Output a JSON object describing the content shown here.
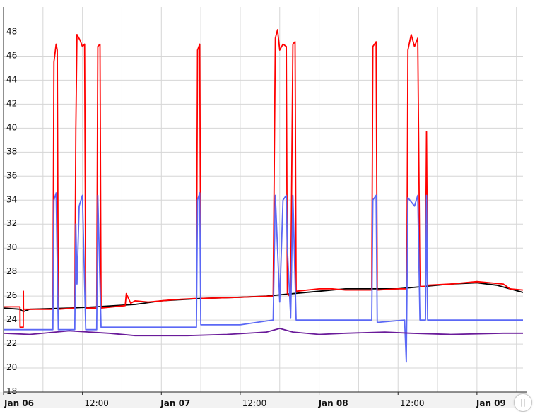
{
  "chart_data": {
    "type": "line",
    "title": "",
    "xlabel": "",
    "ylabel": "",
    "ylim": [
      18,
      49.5
    ],
    "xlim": [
      "2024-01-06T00:00",
      "2024-01-09T07:00"
    ],
    "y_ticks": [
      "18",
      "20",
      "22",
      "24",
      "26",
      "28",
      "30",
      "32",
      "34",
      "36",
      "38",
      "40",
      "42",
      "44",
      "46",
      "48"
    ],
    "x_ticks": [
      {
        "label": "Jan 06",
        "at": "2024-01-06T00:00",
        "major": true
      },
      {
        "label": "12:00",
        "at": "2024-01-06T12:00",
        "major": false
      },
      {
        "label": "Jan 07",
        "at": "2024-01-07T00:00",
        "major": true
      },
      {
        "label": "12:00",
        "at": "2024-01-07T12:00",
        "major": false
      },
      {
        "label": "Jan 08",
        "at": "2024-01-08T00:00",
        "major": true
      },
      {
        "label": "12:00",
        "at": "2024-01-08T12:00",
        "major": false
      },
      {
        "label": "Jan 09",
        "at": "2024-01-09T00:00",
        "major": true
      }
    ],
    "grid": true,
    "legend": "none",
    "series": [
      {
        "color": "#000000",
        "points": [
          [
            "2024-01-06T00:00",
            25.0
          ],
          [
            "2024-01-06T02:30",
            24.9
          ],
          [
            "2024-01-06T03:00",
            24.7
          ],
          [
            "2024-01-06T04:00",
            24.9
          ],
          [
            "2024-01-06T10:00",
            25.0
          ],
          [
            "2024-01-06T14:00",
            25.1
          ],
          [
            "2024-01-06T20:00",
            25.3
          ],
          [
            "2024-01-07T00:00",
            25.6
          ],
          [
            "2024-01-07T06:00",
            25.8
          ],
          [
            "2024-01-07T12:00",
            25.9
          ],
          [
            "2024-01-07T16:00",
            26.0
          ],
          [
            "2024-01-07T20:00",
            26.2
          ],
          [
            "2024-01-08T00:00",
            26.4
          ],
          [
            "2024-01-08T04:00",
            26.6
          ],
          [
            "2024-01-08T08:00",
            26.6
          ],
          [
            "2024-01-08T12:00",
            26.6
          ],
          [
            "2024-01-08T16:00",
            26.8
          ],
          [
            "2024-01-08T20:00",
            27.0
          ],
          [
            "2024-01-09T00:00",
            27.1
          ],
          [
            "2024-01-09T03:00",
            26.9
          ],
          [
            "2024-01-09T05:00",
            26.6
          ],
          [
            "2024-01-09T07:00",
            26.3
          ]
        ]
      },
      {
        "color": "#ff0000",
        "points": [
          [
            "2024-01-06T00:00",
            25.1
          ],
          [
            "2024-01-06T02:30",
            25.1
          ],
          [
            "2024-01-06T02:31",
            23.4
          ],
          [
            "2024-01-06T03:00",
            23.4
          ],
          [
            "2024-01-06T03:01",
            26.4
          ],
          [
            "2024-01-06T03:02",
            24.9
          ],
          [
            "2024-01-06T07:30",
            24.9
          ],
          [
            "2024-01-06T07:40",
            45.5
          ],
          [
            "2024-01-06T08:00",
            47.0
          ],
          [
            "2024-01-06T08:10",
            46.5
          ],
          [
            "2024-01-06T08:20",
            24.9
          ],
          [
            "2024-01-06T10:50",
            25.0
          ],
          [
            "2024-01-06T11:00",
            40.0
          ],
          [
            "2024-01-06T11:10",
            47.8
          ],
          [
            "2024-01-06T11:40",
            47.3
          ],
          [
            "2024-01-06T12:00",
            46.8
          ],
          [
            "2024-01-06T12:20",
            47.0
          ],
          [
            "2024-01-06T12:30",
            25.0
          ],
          [
            "2024-01-06T14:10",
            25.0
          ],
          [
            "2024-01-06T14:20",
            46.8
          ],
          [
            "2024-01-06T14:40",
            47.0
          ],
          [
            "2024-01-06T14:50",
            25.0
          ],
          [
            "2024-01-06T18:30",
            25.2
          ],
          [
            "2024-01-06T18:40",
            26.2
          ],
          [
            "2024-01-06T19:20",
            25.4
          ],
          [
            "2024-01-06T20:00",
            25.6
          ],
          [
            "2024-01-06T22:00",
            25.5
          ],
          [
            "2024-01-07T02:00",
            25.7
          ],
          [
            "2024-01-07T05:20",
            25.8
          ],
          [
            "2024-01-07T05:30",
            46.5
          ],
          [
            "2024-01-07T05:50",
            47.0
          ],
          [
            "2024-01-07T06:00",
            25.8
          ],
          [
            "2024-01-07T12:00",
            25.9
          ],
          [
            "2024-01-07T17:00",
            26.0
          ],
          [
            "2024-01-07T17:20",
            47.5
          ],
          [
            "2024-01-07T17:40",
            48.2
          ],
          [
            "2024-01-07T18:00",
            46.5
          ],
          [
            "2024-01-07T18:30",
            47.0
          ],
          [
            "2024-01-07T19:00",
            46.8
          ],
          [
            "2024-01-07T19:10",
            26.2
          ],
          [
            "2024-01-07T19:40",
            25.9
          ],
          [
            "2024-01-07T20:00",
            47.0
          ],
          [
            "2024-01-07T20:20",
            47.2
          ],
          [
            "2024-01-07T20:30",
            26.4
          ],
          [
            "2024-01-08T00:00",
            26.6
          ],
          [
            "2024-01-08T02:00",
            26.6
          ],
          [
            "2024-01-08T04:00",
            26.5
          ],
          [
            "2024-01-08T08:00",
            26.5
          ],
          [
            "2024-01-08T08:10",
            46.8
          ],
          [
            "2024-01-08T08:40",
            47.2
          ],
          [
            "2024-01-08T08:50",
            26.5
          ],
          [
            "2024-01-08T12:00",
            26.6
          ],
          [
            "2024-01-08T13:20",
            26.6
          ],
          [
            "2024-01-08T13:30",
            46.5
          ],
          [
            "2024-01-08T14:00",
            47.8
          ],
          [
            "2024-01-08T14:30",
            46.8
          ],
          [
            "2024-01-08T15:00",
            47.5
          ],
          [
            "2024-01-08T15:20",
            26.8
          ],
          [
            "2024-01-08T16:10",
            26.8
          ],
          [
            "2024-01-08T16:20",
            39.7
          ],
          [
            "2024-01-08T16:30",
            26.9
          ],
          [
            "2024-01-08T20:00",
            27.0
          ],
          [
            "2024-01-09T00:00",
            27.2
          ],
          [
            "2024-01-09T04:00",
            27.0
          ],
          [
            "2024-01-09T05:00",
            26.6
          ],
          [
            "2024-01-09T07:00",
            26.5
          ]
        ]
      },
      {
        "color": "#5b68f5",
        "points": [
          [
            "2024-01-06T00:00",
            23.2
          ],
          [
            "2024-01-06T07:30",
            23.2
          ],
          [
            "2024-01-06T07:40",
            34.0
          ],
          [
            "2024-01-06T08:00",
            34.6
          ],
          [
            "2024-01-06T08:20",
            23.2
          ],
          [
            "2024-01-06T10:50",
            23.2
          ],
          [
            "2024-01-06T11:00",
            32.0
          ],
          [
            "2024-01-06T11:10",
            27.0
          ],
          [
            "2024-01-06T11:30",
            33.5
          ],
          [
            "2024-01-06T12:00",
            34.4
          ],
          [
            "2024-01-06T12:30",
            23.2
          ],
          [
            "2024-01-06T14:10",
            23.2
          ],
          [
            "2024-01-06T14:20",
            34.4
          ],
          [
            "2024-01-06T14:50",
            23.4
          ],
          [
            "2024-01-06T20:00",
            23.4
          ],
          [
            "2024-01-07T05:20",
            23.4
          ],
          [
            "2024-01-07T05:30",
            34.0
          ],
          [
            "2024-01-07T05:50",
            34.6
          ],
          [
            "2024-01-07T06:00",
            23.6
          ],
          [
            "2024-01-07T12:00",
            23.6
          ],
          [
            "2024-01-07T17:00",
            24.0
          ],
          [
            "2024-01-07T17:20",
            34.4
          ],
          [
            "2024-01-07T18:00",
            25.5
          ],
          [
            "2024-01-07T18:30",
            34.0
          ],
          [
            "2024-01-07T19:00",
            34.4
          ],
          [
            "2024-01-07T19:10",
            30.0
          ],
          [
            "2024-01-07T19:40",
            24.2
          ],
          [
            "2024-01-07T20:00",
            34.4
          ],
          [
            "2024-01-07T20:30",
            24.0
          ],
          [
            "2024-01-08T00:00",
            24.0
          ],
          [
            "2024-01-08T08:00",
            24.0
          ],
          [
            "2024-01-08T08:10",
            34.0
          ],
          [
            "2024-01-08T08:40",
            34.4
          ],
          [
            "2024-01-08T08:50",
            23.8
          ],
          [
            "2024-01-08T13:00",
            24.0
          ],
          [
            "2024-01-08T13:15",
            20.5
          ],
          [
            "2024-01-08T13:30",
            34.2
          ],
          [
            "2024-01-08T14:30",
            33.5
          ],
          [
            "2024-01-08T15:00",
            34.4
          ],
          [
            "2024-01-08T15:20",
            24.0
          ],
          [
            "2024-01-08T16:10",
            24.0
          ],
          [
            "2024-01-08T16:20",
            34.4
          ],
          [
            "2024-01-08T16:30",
            24.0
          ],
          [
            "2024-01-09T07:00",
            24.0
          ]
        ]
      },
      {
        "color": "#6a1b9a",
        "points": [
          [
            "2024-01-06T00:00",
            22.9
          ],
          [
            "2024-01-06T04:00",
            22.8
          ],
          [
            "2024-01-06T10:00",
            23.1
          ],
          [
            "2024-01-06T16:00",
            22.9
          ],
          [
            "2024-01-06T20:00",
            22.7
          ],
          [
            "2024-01-07T04:00",
            22.7
          ],
          [
            "2024-01-07T10:00",
            22.8
          ],
          [
            "2024-01-07T16:00",
            23.0
          ],
          [
            "2024-01-07T18:00",
            23.3
          ],
          [
            "2024-01-07T20:00",
            23.0
          ],
          [
            "2024-01-08T00:00",
            22.8
          ],
          [
            "2024-01-08T04:00",
            22.9
          ],
          [
            "2024-01-08T10:00",
            23.0
          ],
          [
            "2024-01-08T14:00",
            22.9
          ],
          [
            "2024-01-08T20:00",
            22.8
          ],
          [
            "2024-01-09T04:00",
            22.9
          ],
          [
            "2024-01-09T07:00",
            22.9
          ]
        ]
      }
    ]
  },
  "controls": {
    "zoom_handle_label": "||"
  }
}
